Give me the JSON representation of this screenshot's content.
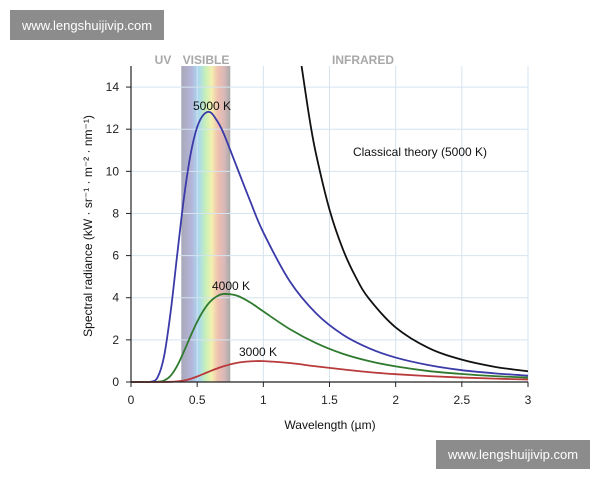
{
  "watermarks": {
    "top": "www.lengshuijivip.com",
    "bottom": "www.lengshuijivip.com"
  },
  "chart_data": {
    "type": "line",
    "title": "",
    "xlabel": "Wavelength (µm)",
    "ylabel": "Spectral radiance (kW · sr⁻¹ · m⁻² · nm⁻¹)",
    "xlim": [
      0,
      3
    ],
    "ylim": [
      0,
      15
    ],
    "xticks": [
      "0",
      "0.5",
      "1",
      "1.5",
      "2",
      "2.5",
      "3"
    ],
    "yticks": [
      "0",
      "2",
      "4",
      "6",
      "8",
      "10",
      "12",
      "14"
    ],
    "grid": true,
    "regions": [
      {
        "label": "UV"
      },
      {
        "label": "VISIBLE",
        "x": [
          0.38,
          0.75
        ]
      },
      {
        "label": "INFRARED"
      }
    ],
    "x": [
      0,
      0.1,
      0.15,
      0.2,
      0.25,
      0.3,
      0.35,
      0.4,
      0.45,
      0.5,
      0.55,
      0.6,
      0.65,
      0.7,
      0.8,
      0.9,
      1.0,
      1.2,
      1.4,
      1.6,
      1.8,
      2.0,
      2.25,
      2.5,
      2.75,
      3.0
    ],
    "series": [
      {
        "name": "5000 K",
        "color": "#3a3aa8",
        "values": [
          0,
          0,
          0.01,
          0.21,
          1.22,
          3.35,
          6.09,
          8.74,
          10.8,
          12.1,
          12.7,
          12.8,
          12.4,
          11.8,
          10.2,
          8.6,
          7.1,
          4.78,
          3.25,
          2.25,
          1.6,
          1.16,
          0.8,
          0.56,
          0.41,
          0.3
        ]
      },
      {
        "name": "4000 K",
        "color": "#2f7a2f",
        "values": [
          0,
          0,
          0,
          0.01,
          0.07,
          0.3,
          0.78,
          1.45,
          2.18,
          2.86,
          3.42,
          3.83,
          4.07,
          4.18,
          4.1,
          3.78,
          3.35,
          2.51,
          1.84,
          1.34,
          0.99,
          0.74,
          0.52,
          0.38,
          0.28,
          0.21
        ]
      },
      {
        "name": "3000 K",
        "color": "#b83a3a",
        "values": [
          0,
          0,
          0,
          0,
          0,
          0.01,
          0.03,
          0.07,
          0.15,
          0.26,
          0.39,
          0.52,
          0.64,
          0.75,
          0.91,
          0.98,
          0.99,
          0.9,
          0.74,
          0.6,
          0.47,
          0.37,
          0.28,
          0.21,
          0.16,
          0.12
        ]
      },
      {
        "name": "Classical theory (5000 K)",
        "color": "#111111",
        "x": [
          1.289,
          1.35,
          1.4,
          1.5,
          1.6,
          1.7,
          1.8,
          2.0,
          2.25,
          2.5,
          2.75,
          3.0
        ],
        "values": [
          15,
          12.46,
          10.77,
          8.18,
          6.32,
          4.96,
          3.94,
          2.59,
          1.61,
          1.06,
          0.72,
          0.51
        ]
      }
    ]
  }
}
